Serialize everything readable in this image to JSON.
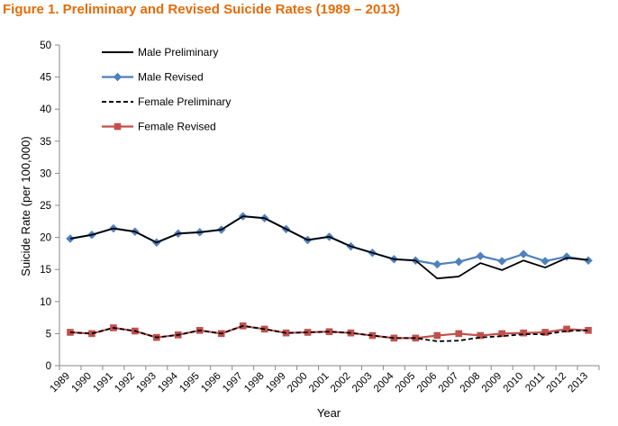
{
  "title": "Figure 1. Preliminary and Revised Suicide Rates (1989 – 2013)",
  "chart_data": {
    "type": "line",
    "title": "Figure 1. Preliminary and Revised Suicide Rates (1989 – 2013)",
    "xlabel": "Year",
    "ylabel": "Suicide Rate (per 100,000)",
    "ylim": [
      0,
      50
    ],
    "yticks": [
      0,
      5,
      10,
      15,
      20,
      25,
      30,
      35,
      40,
      45,
      50
    ],
    "categories": [
      "1989",
      "1990",
      "1991",
      "1992",
      "1993",
      "1994",
      "1995",
      "1996",
      "1997",
      "1998",
      "1999",
      "2000",
      "2001",
      "2002",
      "2003",
      "2004",
      "2005",
      "2006",
      "2007",
      "2008",
      "2009",
      "2010",
      "2011",
      "2012",
      "2013"
    ],
    "grid": false,
    "legend_position": "top-left",
    "series": [
      {
        "name": "Male Preliminary",
        "color": "#000000",
        "dash": "solid",
        "marker": "none",
        "values": [
          19.8,
          20.4,
          21.4,
          20.9,
          19.2,
          20.6,
          20.8,
          21.2,
          23.3,
          23.0,
          21.3,
          19.6,
          20.1,
          18.6,
          17.6,
          16.6,
          16.4,
          13.6,
          13.9,
          16.0,
          14.9,
          16.4,
          15.3,
          16.8,
          16.5
        ]
      },
      {
        "name": "Male Revised",
        "color": "#4F81BD",
        "dash": "solid",
        "marker": "diamond",
        "values": [
          19.8,
          20.4,
          21.4,
          20.9,
          19.2,
          20.6,
          20.8,
          21.2,
          23.3,
          23.0,
          21.3,
          19.6,
          20.1,
          18.6,
          17.6,
          16.6,
          16.4,
          15.8,
          16.2,
          17.1,
          16.3,
          17.4,
          16.3,
          17.0,
          16.4
        ]
      },
      {
        "name": "Female Preliminary",
        "color": "#000000",
        "dash": "dashed",
        "marker": "none",
        "values": [
          5.2,
          5.0,
          5.9,
          5.4,
          4.4,
          4.8,
          5.5,
          5.0,
          6.2,
          5.7,
          5.1,
          5.2,
          5.3,
          5.1,
          4.7,
          4.3,
          4.3,
          3.8,
          3.9,
          4.4,
          4.6,
          4.9,
          4.9,
          5.4,
          5.5
        ]
      },
      {
        "name": "Female Revised",
        "color": "#C0504D",
        "dash": "solid",
        "marker": "square",
        "values": [
          5.2,
          5.0,
          5.9,
          5.4,
          4.4,
          4.8,
          5.5,
          5.0,
          6.2,
          5.7,
          5.1,
          5.2,
          5.3,
          5.1,
          4.7,
          4.3,
          4.3,
          4.7,
          5.0,
          4.7,
          5.0,
          5.1,
          5.2,
          5.7,
          5.5
        ]
      }
    ]
  }
}
